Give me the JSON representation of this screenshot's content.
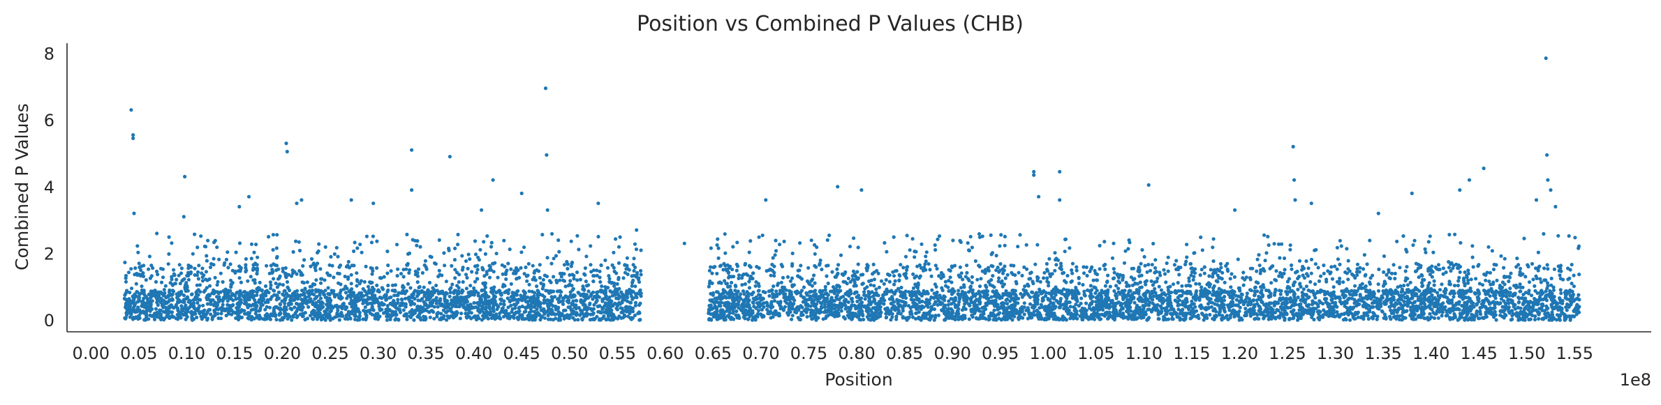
{
  "chart_data": {
    "type": "scatter",
    "title": "Position vs Combined P Values (CHB)",
    "xlabel": "Position",
    "ylabel": "Combined P Values",
    "x_offset_label": "1e8",
    "x_scale_note": "positions in units of 1e8",
    "xlim": [
      -0.025,
      1.63
    ],
    "ylim": [
      -0.35,
      8.3
    ],
    "x_ticks": [
      "0.00",
      "0.05",
      "0.10",
      "0.15",
      "0.20",
      "0.25",
      "0.30",
      "0.35",
      "0.40",
      "0.45",
      "0.50",
      "0.55",
      "0.60",
      "0.65",
      "0.70",
      "0.75",
      "0.80",
      "0.85",
      "0.90",
      "0.95",
      "1.00",
      "1.05",
      "1.10",
      "1.15",
      "1.20",
      "1.25",
      "1.30",
      "1.35",
      "1.40",
      "1.45",
      "1.50",
      "1.55"
    ],
    "y_ticks": [
      "0",
      "2",
      "4",
      "6",
      "8"
    ],
    "point_color": "#1f77b4",
    "grid": false,
    "dense_ranges": [
      [
        0.035,
        0.575
      ],
      [
        0.645,
        1.555
      ]
    ],
    "series": [
      {
        "x": [
          0.042,
          0.044,
          0.044,
          0.045,
          0.098,
          0.097,
          0.155,
          0.165,
          0.204,
          0.205,
          0.215,
          0.22,
          0.272,
          0.295,
          0.335,
          0.335,
          0.375,
          0.408,
          0.42,
          0.45,
          0.475,
          0.476,
          0.477,
          0.53,
          0.57,
          0.62,
          0.705,
          0.78,
          0.805,
          0.985,
          0.985,
          0.99,
          1.012,
          1.012,
          1.105,
          1.195,
          1.256,
          1.257,
          1.258,
          1.275,
          1.345,
          1.38,
          1.43,
          1.44,
          1.455,
          1.51,
          1.52,
          1.521,
          1.522,
          1.525,
          1.53
        ],
        "y": [
          6.3,
          5.55,
          5.45,
          3.2,
          4.3,
          3.1,
          3.4,
          3.7,
          5.3,
          5.05,
          3.5,
          3.6,
          3.6,
          3.5,
          5.1,
          3.9,
          4.9,
          3.3,
          4.2,
          3.8,
          6.95,
          4.95,
          3.3,
          3.5,
          2.7,
          2.3,
          3.6,
          4.0,
          3.9,
          4.45,
          4.35,
          3.7,
          4.45,
          3.6,
          4.05,
          3.3,
          5.2,
          4.2,
          3.6,
          3.5,
          3.2,
          3.8,
          3.9,
          4.2,
          4.55,
          3.6,
          7.85,
          4.95,
          4.2,
          3.9,
          3.4
        ]
      }
    ]
  }
}
